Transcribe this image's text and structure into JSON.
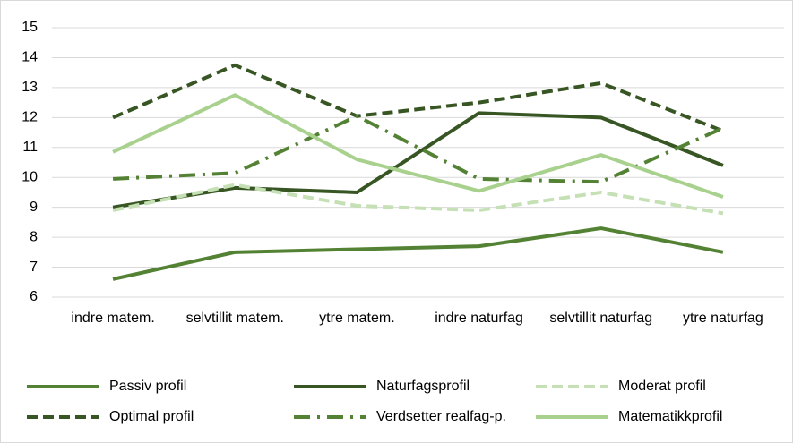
{
  "chart_data": {
    "type": "line",
    "categories": [
      "indre matem.",
      "selvtillit matem.",
      "ytre matem.",
      "indre naturfag",
      "selvtillit naturfag",
      "ytre naturfag"
    ],
    "series": [
      {
        "name": "Passiv profil",
        "color": "#548235",
        "dash": "solid",
        "values": [
          6.6,
          7.5,
          7.6,
          7.7,
          8.3,
          7.5
        ]
      },
      {
        "name": "Naturfagsprofil",
        "color": "#375623",
        "dash": "solid",
        "values": [
          9.0,
          9.65,
          9.5,
          12.15,
          12.0,
          10.4
        ]
      },
      {
        "name": "Moderat profil",
        "color": "#c5e0b4",
        "dash": "dash",
        "values": [
          8.9,
          9.75,
          9.05,
          8.9,
          9.5,
          8.8
        ]
      },
      {
        "name": "Optimal profil",
        "color": "#375623",
        "dash": "dash",
        "values": [
          12.0,
          13.75,
          12.05,
          12.5,
          13.15,
          11.55
        ]
      },
      {
        "name": "Verdsetter realfag-p.",
        "color": "#548235",
        "dash": "dashdot",
        "values": [
          9.95,
          10.15,
          12.05,
          9.95,
          9.85,
          11.65
        ]
      },
      {
        "name": "Matematikkprofil",
        "color": "#a9d18e",
        "dash": "solid",
        "values": [
          10.85,
          12.75,
          10.6,
          9.55,
          10.75,
          9.35
        ]
      }
    ],
    "ylim": [
      6,
      15
    ],
    "yticks": [
      6,
      7,
      8,
      9,
      10,
      11,
      12,
      13,
      14,
      15
    ],
    "grid": true
  }
}
